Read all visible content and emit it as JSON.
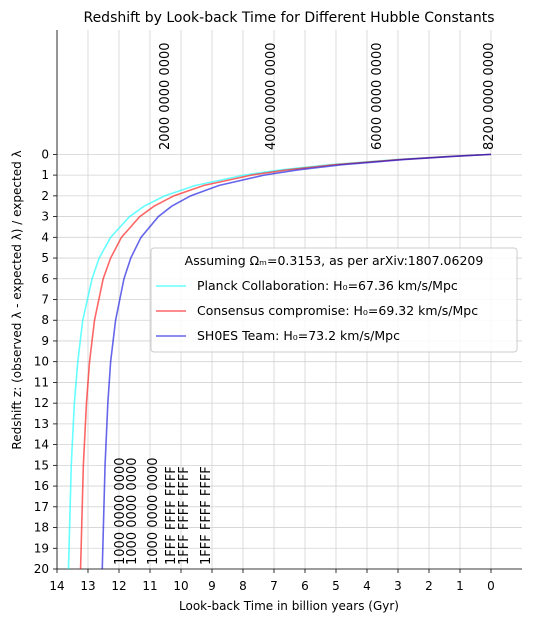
{
  "chart_data": {
    "type": "line",
    "title": "Redshift by Look-back Time for Different Hubble Constants",
    "x_label": "Look-back Time in billion years (Gyr)",
    "y_label": "Redshift z: (observed λ - expected λ) / expected λ",
    "xlim": [
      14,
      -1
    ],
    "ylim": [
      20,
      -6
    ],
    "xticks": [
      14,
      13,
      12,
      11,
      10,
      9,
      8,
      7,
      6,
      5,
      4,
      3,
      2,
      1,
      0
    ],
    "yticks": [
      0,
      1,
      2,
      3,
      4,
      5,
      6,
      7,
      8,
      9,
      10,
      11,
      12,
      13,
      14,
      15,
      16,
      17,
      18,
      19,
      20
    ],
    "grid": true,
    "legend_title": "Assuming Ωₘ=0.3153, as per arXiv:1807.06209",
    "legend_position": "center right",
    "series": [
      {
        "name": "Planck Collaboration: H₀=67.36 km/s/Mpc",
        "color": "#00ffff",
        "x": [
          0,
          1.35,
          3.05,
          5.22,
          6.79,
          7.96,
          9.54,
          10.53,
          11.19,
          11.66,
          12.27,
          12.64,
          12.87,
          13.17,
          13.33,
          13.44,
          13.54,
          13.63
        ],
        "values": [
          0,
          0.1,
          0.25,
          0.5,
          0.75,
          1,
          1.5,
          2,
          2.5,
          3,
          4,
          5,
          6,
          8,
          10,
          12,
          15,
          20
        ]
      },
      {
        "name": "Consensus compromise: H₀=69.32 km/s/Mpc",
        "color": "#ff0000",
        "x": [
          0,
          1.31,
          2.96,
          5.07,
          6.59,
          7.73,
          9.27,
          10.23,
          10.87,
          11.33,
          11.92,
          12.27,
          12.51,
          12.79,
          12.95,
          13.05,
          13.15,
          13.24
        ],
        "values": [
          0,
          0.1,
          0.25,
          0.5,
          0.75,
          1,
          1.5,
          2,
          2.5,
          3,
          4,
          5,
          6,
          8,
          10,
          12,
          15,
          20
        ]
      },
      {
        "name": "SH0ES Team: H₀=73.2 km/s/Mpc",
        "color": "#0000dd",
        "x": [
          0,
          1.24,
          2.81,
          4.8,
          6.24,
          7.32,
          8.78,
          9.69,
          10.3,
          10.73,
          11.29,
          11.62,
          11.84,
          12.11,
          12.27,
          12.36,
          12.45,
          12.54
        ],
        "values": [
          0,
          0.1,
          0.25,
          0.5,
          0.75,
          1,
          1.5,
          2,
          2.5,
          3,
          4,
          5,
          6,
          8,
          10,
          12,
          15,
          20
        ]
      }
    ],
    "annotations": [
      {
        "text": "2000 0000 0000",
        "color": "#000000"
      },
      {
        "text": "4000 0000 0000",
        "color": "#000000"
      },
      {
        "text": "6000 0000 0000",
        "color": "#000000"
      },
      {
        "text": "8200 0000 0000",
        "color": "#000000"
      },
      {
        "text": "1000 0000 0000",
        "color": "#00e8e8"
      },
      {
        "text": "1000 0000 0000",
        "color": "#ee0000"
      },
      {
        "text": "1000 0000 0000",
        "color": "#0000cc"
      },
      {
        "text": "1FFF FFFF FFFF",
        "color": "#00e8e8"
      },
      {
        "text": "1FFF FFFF FFFF",
        "color": "#ee0000"
      },
      {
        "text": "1FFF FFFF FFFF",
        "color": "#0000cc"
      }
    ]
  }
}
